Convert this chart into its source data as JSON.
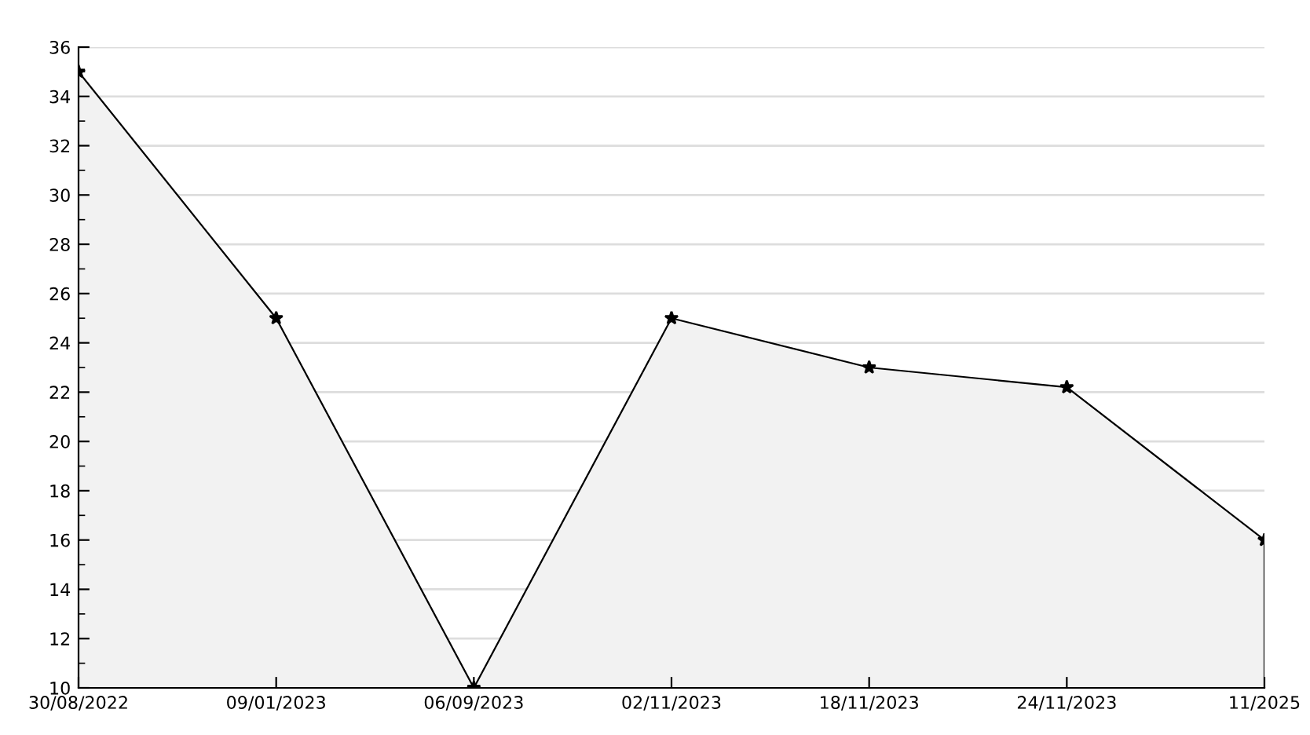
{
  "chart_data": {
    "type": "area",
    "categories": [
      "30/08/2022",
      "09/01/2023",
      "06/09/2023",
      "02/11/2023",
      "18/11/2023",
      "24/11/2023",
      "11/2025"
    ],
    "series": [
      {
        "color": "#000000",
        "values": [
          35,
          25,
          10,
          25,
          23,
          22.2,
          16
        ]
      }
    ],
    "ylim": [
      10,
      36
    ],
    "yticks": [
      10,
      {
        "value": 11,
        "label": null
      },
      12,
      {
        "value": 13,
        "label": null
      },
      14,
      {
        "value": 15,
        "label": null
      },
      16,
      {
        "value": 17,
        "label": null
      },
      18,
      {
        "value": 19,
        "label": null
      },
      20,
      {
        "value": 21,
        "label": null
      },
      22,
      {
        "value": 23,
        "label": null
      },
      24,
      {
        "value": 25,
        "label": null
      },
      26,
      {
        "value": 27,
        "label": null
      },
      28,
      {
        "value": 29,
        "label": null
      },
      30,
      {
        "value": 31,
        "label": null
      },
      32,
      {
        "value": 33,
        "label": null
      },
      34,
      {
        "value": 35,
        "label": null
      },
      36
    ],
    "grid": "y",
    "marker": "star",
    "line_style": "solid"
  }
}
